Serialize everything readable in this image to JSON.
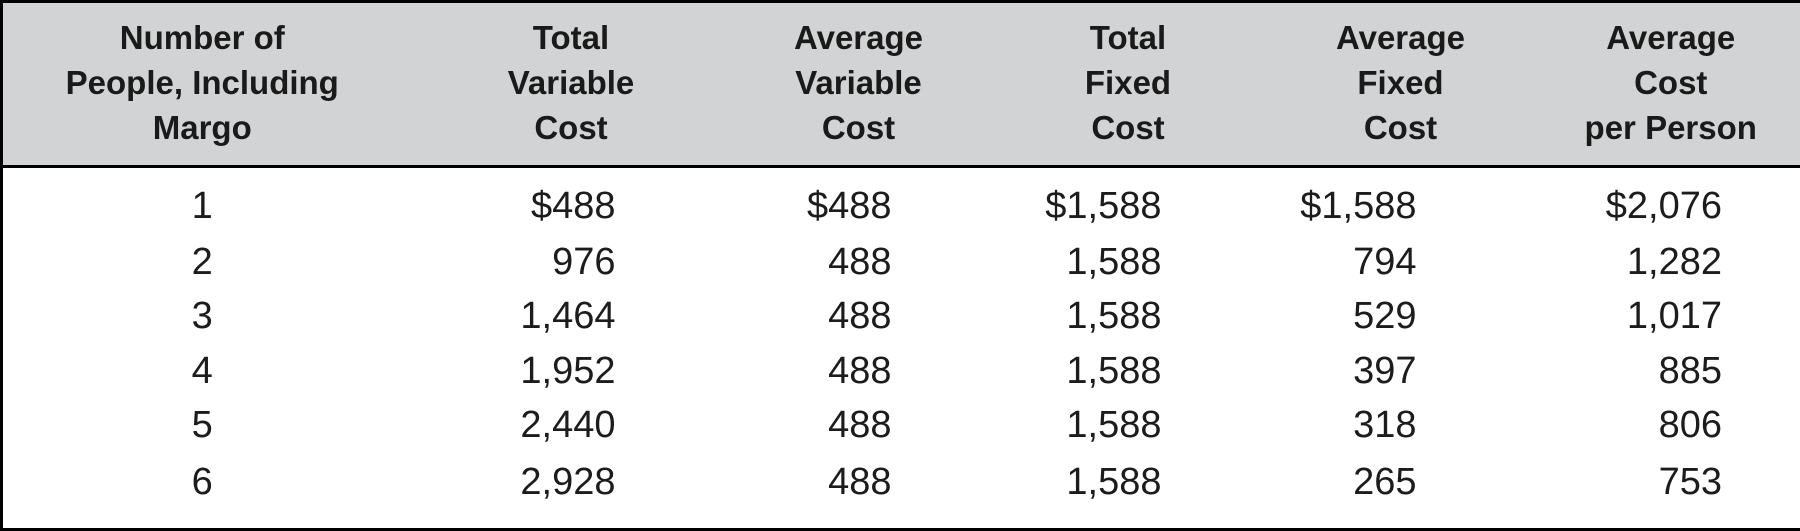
{
  "colors": {
    "header_background": "#d2d3d4",
    "border": "#000000",
    "text": "#1c1c1c",
    "body_background": "#ffffff"
  },
  "table": {
    "headers": [
      "Number of\nPeople, Including\nMargo",
      "Total\nVariable\nCost",
      "Average\nVariable\nCost",
      "Total\nFixed\nCost",
      "Average\nFixed\nCost",
      "Average\nCost\nper Person"
    ],
    "rows": [
      {
        "cells": [
          "1",
          "$488",
          "$488",
          "$1,588",
          "$1,588",
          "$2,076"
        ]
      },
      {
        "cells": [
          "2",
          "976",
          "488",
          "1,588",
          "794",
          "1,282"
        ]
      },
      {
        "cells": [
          "3",
          "1,464",
          "488",
          "1,588",
          "529",
          "1,017"
        ]
      },
      {
        "cells": [
          "4",
          "1,952",
          "488",
          "1,588",
          "397",
          "885"
        ]
      },
      {
        "cells": [
          "5",
          "2,440",
          "488",
          "1,588",
          "318",
          "806"
        ]
      },
      {
        "cells": [
          "6",
          "2,928",
          "488",
          "1,588",
          "265",
          "753"
        ]
      }
    ]
  },
  "chart_data": {
    "type": "table",
    "columns": [
      "Number of People, Including Margo",
      "Total Variable Cost",
      "Average Variable Cost",
      "Total Fixed Cost",
      "Average Fixed Cost",
      "Average Cost per Person"
    ],
    "rows": [
      [
        1,
        488,
        488,
        1588,
        1588,
        2076
      ],
      [
        2,
        976,
        488,
        1588,
        794,
        1282
      ],
      [
        3,
        1464,
        488,
        1588,
        529,
        1017
      ],
      [
        4,
        1952,
        488,
        1588,
        397,
        885
      ],
      [
        5,
        2440,
        488,
        1588,
        318,
        806
      ],
      [
        6,
        2928,
        488,
        1588,
        265,
        753
      ]
    ],
    "notes": "Currency symbol ($) shown only on first data row values; thousands separated by commas."
  }
}
